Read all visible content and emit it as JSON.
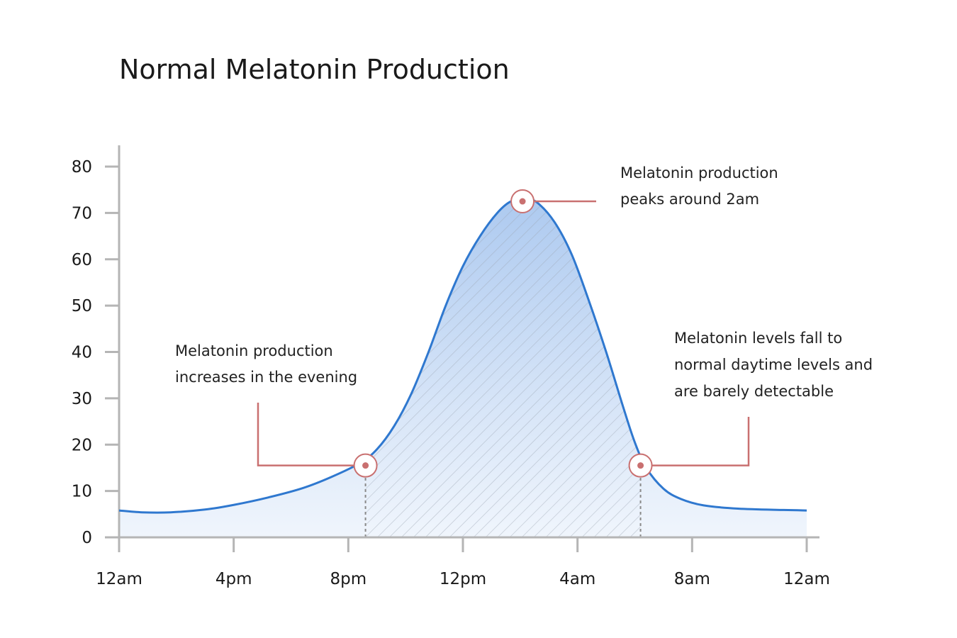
{
  "title": "Normal Melatonin Production",
  "chart_data": {
    "type": "area",
    "title": "Normal Melatonin Production",
    "xlabel": "",
    "ylabel": "",
    "ylim": [
      0,
      80
    ],
    "grid": false,
    "y_ticks": [
      {
        "value": 0,
        "label": "0"
      },
      {
        "value": 10,
        "label": "10"
      },
      {
        "value": 20,
        "label": "20"
      },
      {
        "value": 30,
        "label": "30"
      },
      {
        "value": 40,
        "label": "40"
      },
      {
        "value": 50,
        "label": "50"
      },
      {
        "value": 60,
        "label": "60"
      },
      {
        "value": 70,
        "label": "70"
      },
      {
        "value": 80,
        "label": "80"
      }
    ],
    "x_ticks": [
      {
        "value": 0,
        "label": "12am"
      },
      {
        "value": 1,
        "label": "4pm"
      },
      {
        "value": 2,
        "label": "8pm"
      },
      {
        "value": 3,
        "label": "12pm"
      },
      {
        "value": 4,
        "label": "4am"
      },
      {
        "value": 5,
        "label": "8am"
      },
      {
        "value": 6,
        "label": "12am"
      }
    ],
    "series": [
      {
        "color": "#2f78cf",
        "fill_color": "#b9d2f2",
        "points": [
          [
            0.0,
            5.8
          ],
          [
            0.2,
            5.4
          ],
          [
            0.45,
            5.4
          ],
          [
            0.75,
            6.0
          ],
          [
            1.0,
            7.0
          ],
          [
            1.3,
            8.6
          ],
          [
            1.6,
            10.6
          ],
          [
            1.85,
            13.0
          ],
          [
            2.1,
            16.0
          ],
          [
            2.25,
            19.0
          ],
          [
            2.4,
            24.0
          ],
          [
            2.55,
            31.0
          ],
          [
            2.7,
            40.0
          ],
          [
            2.85,
            50.0
          ],
          [
            3.0,
            58.5
          ],
          [
            3.15,
            65.0
          ],
          [
            3.3,
            70.0
          ],
          [
            3.42,
            72.5
          ],
          [
            3.55,
            73.0
          ],
          [
            3.65,
            72.2
          ],
          [
            3.8,
            68.0
          ],
          [
            3.95,
            61.0
          ],
          [
            4.1,
            51.0
          ],
          [
            4.25,
            40.0
          ],
          [
            4.4,
            28.0
          ],
          [
            4.5,
            20.5
          ],
          [
            4.6,
            15.0
          ],
          [
            4.75,
            10.5
          ],
          [
            4.9,
            8.3
          ],
          [
            5.1,
            6.9
          ],
          [
            5.4,
            6.2
          ],
          [
            5.8,
            5.9
          ],
          [
            6.0,
            5.8
          ]
        ]
      }
    ],
    "highlight_range": {
      "start": 2.15,
      "end": 4.55
    },
    "annotations": [
      {
        "x": 2.15,
        "y": 15.5,
        "lines": [
          "Melatonin production",
          "increases in the evening"
        ]
      },
      {
        "x": 3.52,
        "y": 72.5,
        "lines": [
          "Melatonin production",
          "peaks around 2am"
        ]
      },
      {
        "x": 4.55,
        "y": 15.5,
        "lines": [
          "Melatonin levels fall to",
          "normal daytime levels and",
          "are barely detectable"
        ]
      }
    ],
    "axis_color": "#b5b5b5",
    "marker_color": "#c97070"
  }
}
